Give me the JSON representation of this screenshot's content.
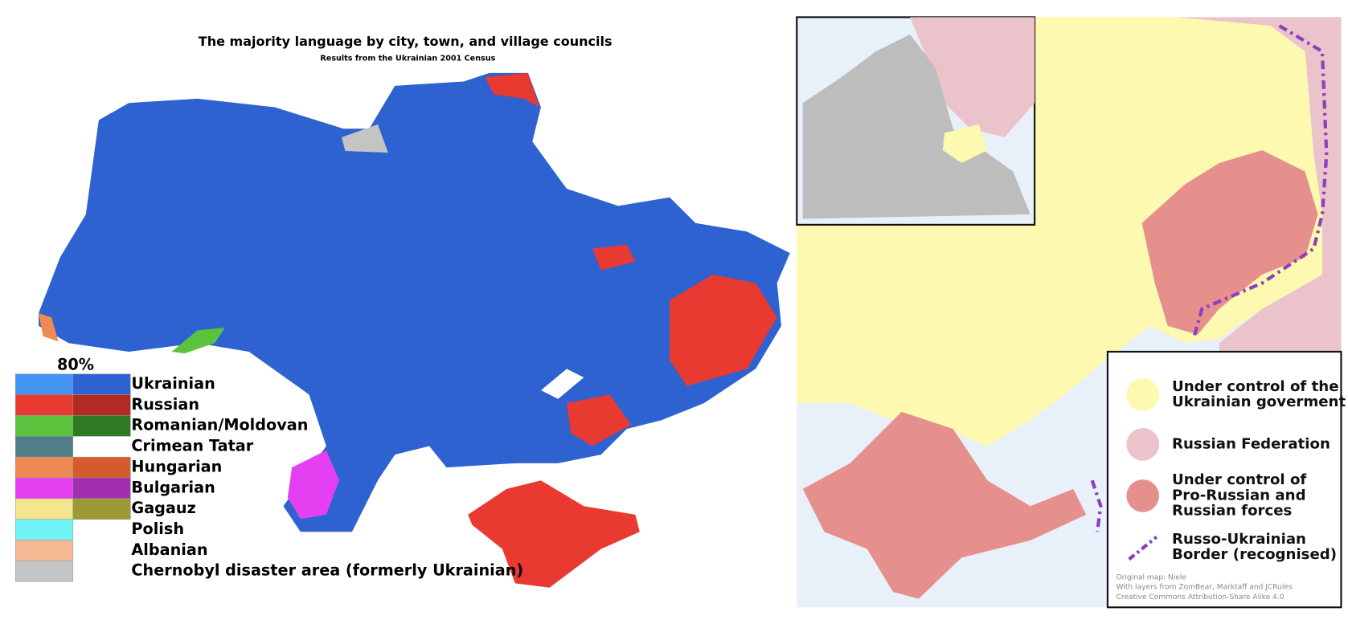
{
  "left_map": {
    "title": "The majority language by city, town, and village councils",
    "subtitle": "Results from the Ukrainian 2001 Census",
    "legend_header": "80%",
    "legend": [
      {
        "label": "Ukrainian",
        "colors": [
          "#4393f2",
          "#2d62d0"
        ]
      },
      {
        "label": "Russian",
        "colors": [
          "#e83a30",
          "#b42a22"
        ]
      },
      {
        "label": "Romanian/Moldovan",
        "colors": [
          "#5cc33f",
          "#2e7a22"
        ]
      },
      {
        "label": "Crimean Tatar",
        "colors": [
          "#4f7f86"
        ]
      },
      {
        "label": "Hungarian",
        "colors": [
          "#ef8a52",
          "#d65b2c"
        ]
      },
      {
        "label": "Bulgarian",
        "colors": [
          "#e43ff0",
          "#a12eb0"
        ]
      },
      {
        "label": "Gagauz",
        "colors": [
          "#f4e58f",
          "#9b9a35"
        ]
      },
      {
        "label": "Polish",
        "colors": [
          "#6ff3f6"
        ]
      },
      {
        "label": "Albanian",
        "colors": [
          "#f4b893"
        ]
      },
      {
        "label": "Chernobyl disaster area (formerly Ukrainian)",
        "colors": [
          "#c4c4c4"
        ]
      }
    ]
  },
  "right_map": {
    "legend": [
      {
        "lines": [
          "Under control of the",
          "Ukrainian goverment"
        ],
        "color": "#fdf9b0"
      },
      {
        "lines": [
          "Russian Federation"
        ],
        "color": "#ebc4cb"
      },
      {
        "lines": [
          "Under control of",
          "Pro-Russian and",
          "Russian forces"
        ],
        "color": "#e6908e"
      },
      {
        "lines": [
          "Russo-Ukrainian",
          "Border (recognised)"
        ],
        "color": "#8e3fbf"
      }
    ],
    "credits": [
      "Original map: Niele",
      "With layers from ZomBear, Marktaff and JCRules",
      "Creative Commons Attribution-Share Alike 4.0"
    ]
  }
}
